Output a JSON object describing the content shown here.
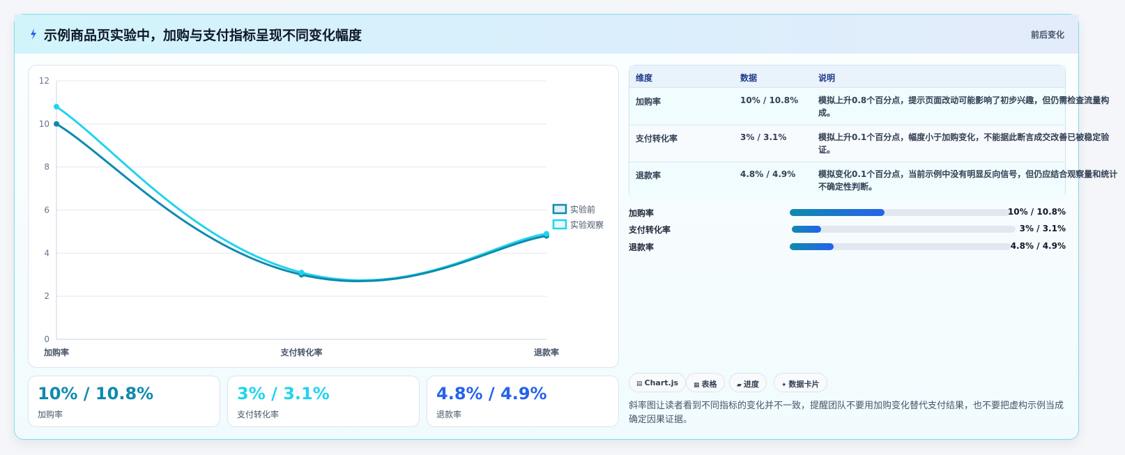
{
  "header": {
    "title": "示例商品页实验中，加购与支付指标呈现不同变化幅度",
    "icon": "lightning-icon",
    "tag": "前后变化"
  },
  "chart_data": {
    "type": "line",
    "categories": [
      "加购率",
      "支付转化率",
      "退款率"
    ],
    "series": [
      {
        "name": "实验前",
        "values": [
          10,
          3,
          4.8
        ],
        "color": "#0e8aad"
      },
      {
        "name": "实验观察",
        "values": [
          10.8,
          3.1,
          4.9
        ],
        "color": "#22d3ee"
      }
    ],
    "ylim": [
      0,
      12
    ],
    "yticks": [
      0,
      2,
      4,
      6,
      8,
      10,
      12
    ],
    "grid": true,
    "legend": "right"
  },
  "stats": [
    {
      "value": "10% / 10.8%",
      "label": "加购率",
      "color": "#0e8aad"
    },
    {
      "value": "3% / 3.1%",
      "label": "支付转化率",
      "color": "#22d3ee"
    },
    {
      "value": "4.8% / 4.9%",
      "label": "退款率",
      "color": "#2563eb"
    }
  ],
  "table": {
    "headers": [
      "维度",
      "数据",
      "说明"
    ],
    "rows": [
      {
        "dim": "加购率",
        "data": "10% / 10.8%",
        "note": "模拟上升0.8个百分点，提示页面改动可能影响了初步兴趣，但仍需检查流量构成。"
      },
      {
        "dim": "支付转化率",
        "data": "3% / 3.1%",
        "note": "模拟上升0.1个百分点，幅度小于加购变化，不能据此断言成交改善已被稳定验证。"
      },
      {
        "dim": "退款率",
        "data": "4.8% / 4.9%",
        "note": "模拟变化0.1个百分点，当前示例中没有明显反向信号，但仍应结合观察量和统计不确定性判断。"
      }
    ]
  },
  "progress": [
    {
      "label": "加购率",
      "value": "10% / 10.8%",
      "fill": 0.43
    },
    {
      "label": "支付转化率",
      "value": "3% / 3.1%",
      "fill": 0.13
    },
    {
      "label": "退款率",
      "value": "4.8% / 4.9%",
      "fill": 0.2
    }
  ],
  "chips": [
    {
      "icon": "chart-icon",
      "glyph": "▤",
      "label": "Chart.js"
    },
    {
      "icon": "table-icon",
      "glyph": "▦",
      "label": "表格"
    },
    {
      "icon": "progress-icon",
      "glyph": "▰",
      "label": "进度"
    },
    {
      "icon": "sparkle-icon",
      "glyph": "✦",
      "label": "数据卡片"
    }
  ],
  "footer_note": "斜率图让读者看到不同指标的变化并不一致，提醒团队不要用加购变化替代支付结果，也不要把虚构示例当成确定因果证据。"
}
